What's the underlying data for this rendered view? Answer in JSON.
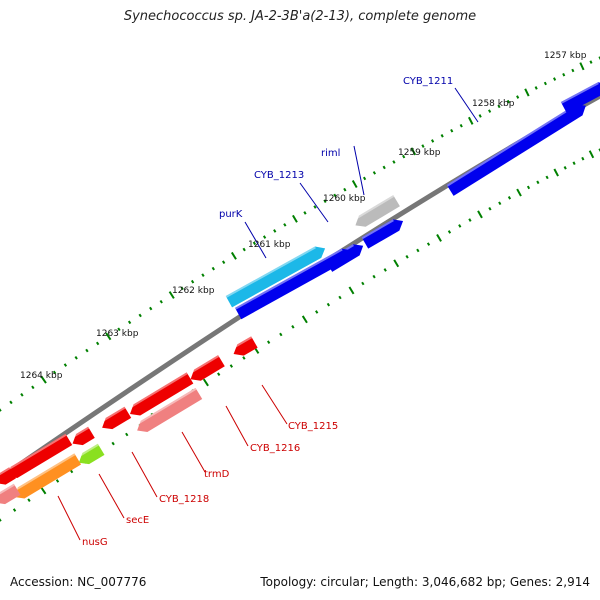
{
  "title": "Synechococcus sp. JA-2-3B'a(2-13), complete genome",
  "footer": {
    "accession": "Accession: NC_007776",
    "summary": "Topology: circular; Length: 3,046,682 bp; Genes: 2,914"
  },
  "scale_labels": [
    "1257 kbp",
    "1258 kbp",
    "1259 kbp",
    "1260 kbp",
    "1261 kbp",
    "1262 kbp",
    "1263 kbp",
    "1264 kbp"
  ],
  "colors": {
    "strand_forward": "#0000ee",
    "strand_reverse": "#ee0000",
    "reverse_light": "#f08080",
    "cyan": "#1cb8e8",
    "gray": "#bbbbbb",
    "orange": "#ff9020",
    "lime": "#8ae020",
    "backbone": "#777777",
    "ticks": "#008000"
  },
  "gene_labels": [
    {
      "text": "CYB_1211",
      "color": "#0000aa"
    },
    {
      "text": "riml",
      "color": "#0000aa"
    },
    {
      "text": "CYB_1213",
      "color": "#0000aa"
    },
    {
      "text": "purK",
      "color": "#0000aa"
    },
    {
      "text": "CYB_1215",
      "color": "#cc0000"
    },
    {
      "text": "CYB_1216",
      "color": "#cc0000"
    },
    {
      "text": "trmD",
      "color": "#cc0000"
    },
    {
      "text": "CYB_1218",
      "color": "#cc0000"
    },
    {
      "text": "secE",
      "color": "#cc0000"
    },
    {
      "text": "nusG",
      "color": "#cc0000"
    }
  ]
}
